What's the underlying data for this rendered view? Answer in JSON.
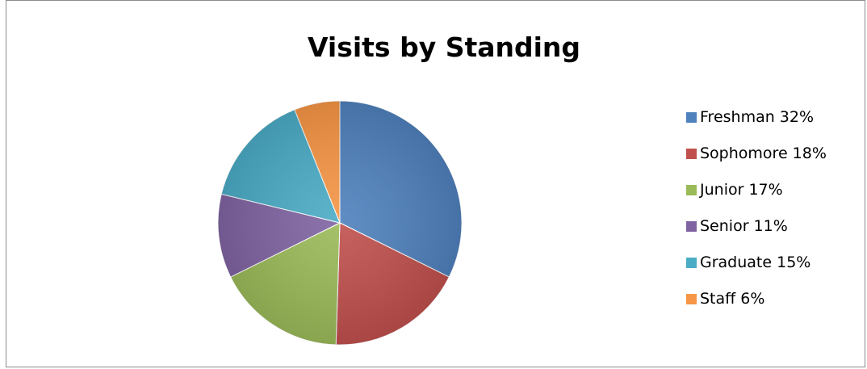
{
  "chart_data": {
    "type": "pie",
    "title": "Visits by Standing",
    "categories": [
      "Freshman",
      "Sophomore",
      "Junior",
      "Senior",
      "Graduate",
      "Staff"
    ],
    "values": [
      32,
      18,
      17,
      11,
      15,
      6
    ],
    "unit": "%",
    "legend_labels": [
      "Freshman 32%",
      "Sophomore 18%",
      "Junior 17%",
      "Senior 11%",
      "Graduate 15%",
      "Staff 6%"
    ],
    "colors": [
      "#4F81BD",
      "#C0504D",
      "#9BBB59",
      "#8064A2",
      "#4BACC6",
      "#F79646"
    ],
    "legend_position": "right"
  }
}
